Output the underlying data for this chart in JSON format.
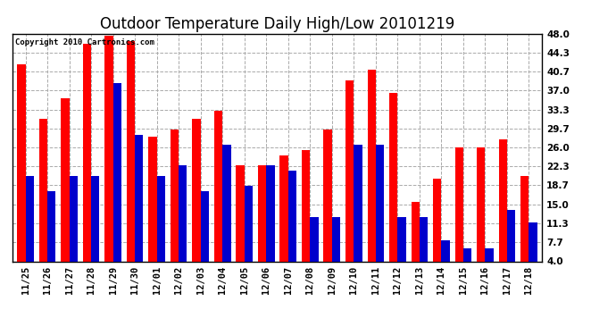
{
  "title": "Outdoor Temperature Daily High/Low 20101219",
  "copyright_text": "Copyright 2010 Cartronics.com",
  "categories": [
    "11/25",
    "11/26",
    "11/27",
    "11/28",
    "11/29",
    "11/30",
    "12/01",
    "12/02",
    "12/03",
    "12/04",
    "12/05",
    "12/06",
    "12/07",
    "12/08",
    "12/09",
    "12/10",
    "12/11",
    "12/12",
    "12/13",
    "12/14",
    "12/15",
    "12/16",
    "12/17",
    "12/18"
  ],
  "highs": [
    42.0,
    31.5,
    35.5,
    46.0,
    47.5,
    46.5,
    28.0,
    29.5,
    31.5,
    33.0,
    22.5,
    22.5,
    24.5,
    25.5,
    29.5,
    39.0,
    41.0,
    36.5,
    15.5,
    20.0,
    26.0,
    26.0,
    27.5,
    20.5
  ],
  "lows": [
    20.5,
    17.5,
    20.5,
    20.5,
    38.5,
    28.5,
    20.5,
    22.5,
    17.5,
    26.5,
    18.5,
    22.5,
    21.5,
    12.5,
    12.5,
    26.5,
    26.5,
    12.5,
    12.5,
    8.0,
    6.5,
    6.5,
    14.0,
    11.5
  ],
  "high_color": "#ff0000",
  "low_color": "#0000cc",
  "bg_color": "#ffffff",
  "grid_color": "#aaaaaa",
  "yticks": [
    4.0,
    7.7,
    11.3,
    15.0,
    18.7,
    22.3,
    26.0,
    29.7,
    33.3,
    37.0,
    40.7,
    44.3,
    48.0
  ],
  "ymin": 4.0,
  "ymax": 48.0,
  "bar_width": 0.38,
  "title_fontsize": 12,
  "tick_fontsize": 7.5,
  "copyright_fontsize": 6.5
}
